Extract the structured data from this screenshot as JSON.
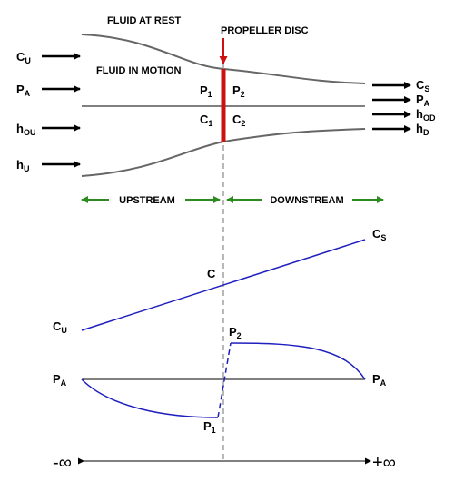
{
  "labels": {
    "fluid_at_rest": "FLUID AT REST",
    "fluid_in_motion": "FLUID IN MOTION",
    "propeller_disc": "PROPELLER DISC",
    "upstream": "UPSTREAM",
    "downstream": "DOWNSTREAM"
  },
  "left_inputs": [
    {
      "main": "C",
      "sub": "U"
    },
    {
      "main": "P",
      "sub": "A"
    },
    {
      "main": "h",
      "sub": "OU"
    },
    {
      "main": "h",
      "sub": "U"
    }
  ],
  "right_outputs": [
    {
      "main": "C",
      "sub": "S"
    },
    {
      "main": "P",
      "sub": "A"
    },
    {
      "main": "h",
      "sub": "OD"
    },
    {
      "main": "h",
      "sub": "D"
    }
  ],
  "disc_labels": {
    "p1": {
      "main": "P",
      "sub": "1"
    },
    "p2": {
      "main": "P",
      "sub": "2"
    },
    "c1": {
      "main": "C",
      "sub": "1"
    },
    "c2": {
      "main": "C",
      "sub": "2"
    }
  },
  "velocity_plot": {
    "start": {
      "main": "C",
      "sub": "U"
    },
    "mid": "C",
    "end": {
      "main": "C",
      "sub": "S"
    }
  },
  "pressure_plot": {
    "left": {
      "main": "P",
      "sub": "A"
    },
    "right": {
      "main": "P",
      "sub": "A"
    },
    "low": {
      "main": "P",
      "sub": "1"
    },
    "high": {
      "main": "P",
      "sub": "2"
    }
  },
  "axis": {
    "neg": "-∞",
    "pos": "+∞"
  },
  "colors": {
    "propeller": "#cc1111",
    "curve": "#1f1fbf",
    "extent_arrows": "#2e8b22",
    "streamtube": "#666666"
  }
}
